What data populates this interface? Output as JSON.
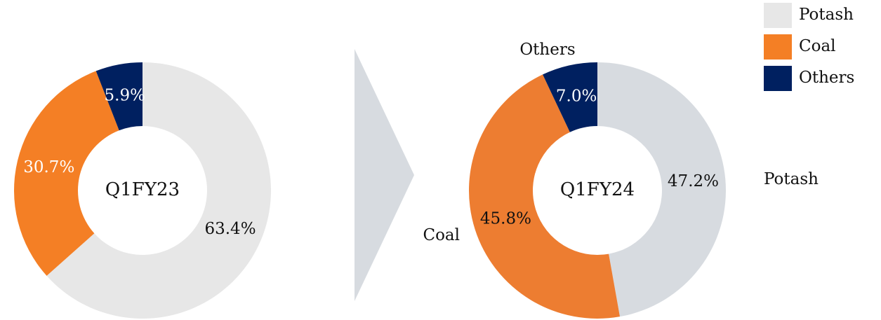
{
  "chart_data": [
    {
      "type": "pie",
      "title": "Q1FY23",
      "categories": [
        "Potash",
        "Coal",
        "Others"
      ],
      "values": [
        63.4,
        30.7,
        5.9
      ],
      "value_labels": [
        "63.4%",
        "30.7%",
        "5.9%"
      ],
      "colors": [
        "#e7e7e7",
        "#f47f25",
        "#002060"
      ],
      "label_colors": [
        "#111111",
        "#ffffff",
        "#ffffff"
      ],
      "legend": true
    },
    {
      "type": "pie",
      "title": "Q1FY24",
      "categories": [
        "Potash",
        "Coal",
        "Others"
      ],
      "values": [
        47.2,
        45.8,
        7.0
      ],
      "value_labels": [
        "47.2%",
        "45.8%",
        "7.0%"
      ],
      "colors": [
        "#d7dbe0",
        "#ed7d31",
        "#002060"
      ],
      "label_colors": [
        "#111111",
        "#111111",
        "#ffffff"
      ],
      "legend": false
    }
  ]
}
